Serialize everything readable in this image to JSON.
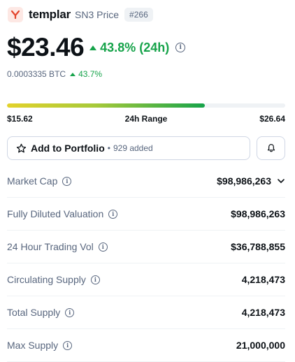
{
  "coin": {
    "name": "templar",
    "subtitle": "SN3 Price",
    "rank": "#266",
    "logo_letter": "Y"
  },
  "price": {
    "value": "$23.46",
    "change_24h": "43.8% (24h)",
    "btc_value": "0.0003335 BTC",
    "btc_change": "43.7%"
  },
  "range": {
    "low": "$15.62",
    "label": "24h Range",
    "high": "$26.64",
    "position_fraction": 0.71
  },
  "actions": {
    "portfolio_label": "Add to Portfolio",
    "portfolio_separator": "•",
    "portfolio_added": "929 added"
  },
  "stats": [
    {
      "label": "Market Cap",
      "value": "$98,986,263",
      "expandable": true
    },
    {
      "label": "Fully Diluted Valuation",
      "value": "$98,986,263",
      "expandable": false
    },
    {
      "label": "24 Hour Trading Vol",
      "value": "$36,788,855",
      "expandable": false
    },
    {
      "label": "Circulating Supply",
      "value": "4,218,473",
      "expandable": false
    },
    {
      "label": "Total Supply",
      "value": "4,218,473",
      "expandable": false
    },
    {
      "label": "Max Supply",
      "value": "21,000,000",
      "expandable": false
    }
  ],
  "colors": {
    "positive": "#16a34a",
    "muted_text": "#58667e",
    "primary_text": "#0d1217",
    "logo_red": "#e3442b"
  },
  "icons": [
    "templar-logo-icon",
    "caret-up-icon",
    "info-icon",
    "star-icon",
    "bell-icon",
    "chevron-down-icon"
  ]
}
